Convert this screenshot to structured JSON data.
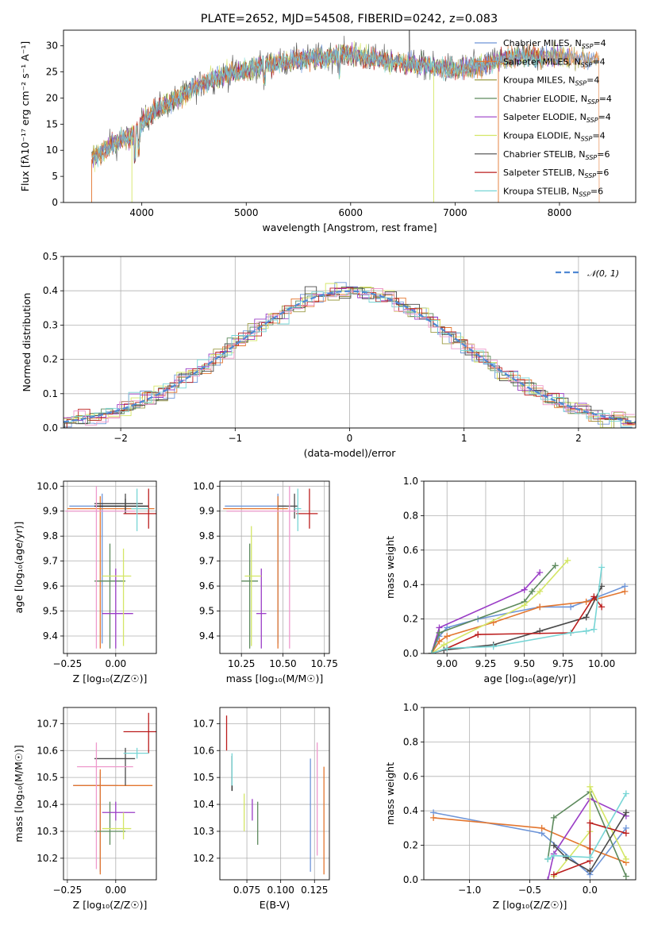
{
  "figure": {
    "title": "PLATE=2652, MJD=54508, FIBERID=0242, z=0.083"
  },
  "colors": [
    "#6e95d8",
    "#e3762f",
    "#9c9c46",
    "#5d8a5d",
    "#9a3dc6",
    "#d4e666",
    "#4a4a4a",
    "#bb1d1d",
    "#77d5d5",
    "#ee99cc",
    "#222222"
  ],
  "chart_data": [
    {
      "id": "spectrum",
      "type": "line",
      "xlabel": "wavelength [Angstrom, rest frame]",
      "ylabel": "Flux [fλ10⁻¹⁷ erg cm⁻² s⁻¹ A⁻¹]",
      "xlim": [
        3250,
        8730
      ],
      "ylim": [
        0,
        33
      ],
      "xticks": [
        "4000",
        "5000",
        "6000",
        "7000",
        "8000"
      ],
      "yticks": [
        "0",
        "5",
        "10",
        "15",
        "20",
        "25",
        "30"
      ],
      "legend_position": "top-right",
      "series": [
        {
          "name": "Chabrier MILES, N",
          "sub": "SSP",
          "suffix": "=4"
        },
        {
          "name": "Salpeter MILES, N",
          "sub": "SSP",
          "suffix": "=4"
        },
        {
          "name": "Kroupa MILES, N",
          "sub": "SSP",
          "suffix": "=4"
        },
        {
          "name": "Chabrier ELODIE, N",
          "sub": "SSP",
          "suffix": "=4"
        },
        {
          "name": "Salpeter ELODIE, N",
          "sub": "SSP",
          "suffix": "=4"
        },
        {
          "name": "Kroupa ELODIE, N",
          "sub": "SSP",
          "suffix": "=4"
        },
        {
          "name": "Chabrier STELIB, N",
          "sub": "SSP",
          "suffix": "=6"
        },
        {
          "name": "Salpeter STELIB, N",
          "sub": "SSP",
          "suffix": "=6"
        },
        {
          "name": "Kroupa STELIB, N",
          "sub": "SSP",
          "suffix": "=6"
        }
      ],
      "continuum": {
        "x": [
          3500,
          3600,
          3700,
          3800,
          3900,
          4000,
          4100,
          4200,
          4300,
          4400,
          4500,
          4600,
          4800,
          5000,
          5200,
          5400,
          5600,
          5800,
          6000,
          6200,
          6400,
          6600,
          6800,
          7000,
          7200,
          7400,
          7600,
          7800,
          8000,
          8200,
          8400
        ],
        "y": [
          8,
          9.5,
          11,
          12,
          12.5,
          15,
          17.5,
          18.5,
          19.5,
          20.5,
          22,
          23,
          24.5,
          25.5,
          26.5,
          27,
          27.5,
          28,
          28.5,
          27.5,
          27,
          26.5,
          26,
          25.5,
          26,
          27,
          28,
          28,
          28,
          27.5,
          27.5
        ]
      }
    },
    {
      "id": "residuals",
      "type": "histogram",
      "xlabel": "(data-model)/error",
      "ylabel": "Normed distribution",
      "xlim": [
        -2.5,
        2.5
      ],
      "ylim": [
        0,
        0.5
      ],
      "xticks": [
        "−2",
        "−1",
        "0",
        "1",
        "2"
      ],
      "yticks": [
        "0.0",
        "0.1",
        "0.2",
        "0.3",
        "0.4",
        "0.5"
      ],
      "legend_position": "top-right",
      "reference": {
        "name": "𝒩(0, 1)",
        "mu": 0,
        "sigma": 1
      },
      "bin_edges_start": -2.5,
      "bin_width": 0.1,
      "bins": 50
    },
    {
      "id": "age-vs-Z",
      "type": "errorbar",
      "xlabel": "Z [log₁₀(Z/Z☉)]",
      "ylabel": "age  [log₁₀(age/yr)]",
      "xlim": [
        -0.27,
        0.21
      ],
      "ylim": [
        9.33,
        10.02
      ],
      "xticks": [
        "−0.25",
        "0.00"
      ],
      "yticks": [
        "9.4",
        "9.5",
        "9.6",
        "9.7",
        "9.8",
        "9.9",
        "10.0"
      ],
      "points": [
        {
          "x": -0.07,
          "y": 9.92,
          "xerr": [
            0.17,
            0.1
          ],
          "yerr": [
            0.55,
            0.05
          ],
          "c": 0
        },
        {
          "x": -0.08,
          "y": 9.91,
          "xerr": [
            0.17,
            0.28
          ],
          "yerr": [
            0.56,
            0.05
          ],
          "c": 1
        },
        {
          "x": 0.05,
          "y": 9.92,
          "xerr": [
            0.16,
            0.12
          ],
          "yerr": [
            0.03,
            0.03
          ],
          "c": 10
        },
        {
          "x": -0.03,
          "y": 9.62,
          "xerr": [
            0.08,
            0.08
          ],
          "yerr": [
            0.27,
            0.15
          ],
          "c": 3
        },
        {
          "x": 0.0,
          "y": 9.49,
          "xerr": [
            0.07,
            0.09
          ],
          "yerr": [
            0.14,
            0.18
          ],
          "c": 4
        },
        {
          "x": 0.04,
          "y": 9.64,
          "xerr": [
            0.11,
            0.04
          ],
          "yerr": [
            0.28,
            0.11
          ],
          "c": 5
        },
        {
          "x": 0.05,
          "y": 9.93,
          "xerr": [
            0.16,
            0.09
          ],
          "yerr": [
            0.03,
            0.04
          ],
          "c": 6
        },
        {
          "x": 0.17,
          "y": 9.89,
          "xerr": [
            0.13,
            0.05
          ],
          "yerr": [
            0.06,
            0.1
          ],
          "c": 7
        },
        {
          "x": 0.11,
          "y": 9.91,
          "xerr": [
            0.03,
            0.06
          ],
          "yerr": [
            0.09,
            0.08
          ],
          "c": 8
        },
        {
          "x": -0.1,
          "y": 9.9,
          "xerr": [
            0.16,
            0.2
          ],
          "yerr": [
            0.55,
            0.1
          ],
          "c": 9
        }
      ]
    },
    {
      "id": "age-vs-mass",
      "type": "errorbar",
      "xlabel": "mass [log₁₀(M/M☉)]",
      "ylabel": "",
      "xlim": [
        10.12,
        10.78
      ],
      "ylim": [
        9.33,
        10.02
      ],
      "xticks": [
        "10.25",
        "10.50",
        "10.75"
      ],
      "yticks": [
        "9.4",
        "9.5",
        "9.6",
        "9.7",
        "9.8",
        "9.9",
        "10.0"
      ],
      "points": [
        {
          "x": 10.47,
          "y": 9.92,
          "xerr": [
            0.32,
            0.05
          ],
          "yerr": [
            0.55,
            0.05
          ],
          "c": 0
        },
        {
          "x": 10.47,
          "y": 9.91,
          "xerr": [
            0.33,
            0.06
          ],
          "yerr": [
            0.56,
            0.05
          ],
          "c": 1
        },
        {
          "x": 10.3,
          "y": 9.62,
          "xerr": [
            0.05,
            0.05
          ],
          "yerr": [
            0.27,
            0.15
          ],
          "c": 3
        },
        {
          "x": 10.37,
          "y": 9.49,
          "xerr": [
            0.03,
            0.03
          ],
          "yerr": [
            0.14,
            0.18
          ],
          "c": 4
        },
        {
          "x": 10.31,
          "y": 9.64,
          "xerr": [
            0.04,
            0.06
          ],
          "yerr": [
            0.28,
            0.2
          ],
          "c": 5
        },
        {
          "x": 10.57,
          "y": 9.92,
          "xerr": [
            0.1,
            0.02
          ],
          "yerr": [
            0.05,
            0.05
          ],
          "c": 6
        },
        {
          "x": 10.66,
          "y": 9.89,
          "xerr": [
            0.08,
            0.05
          ],
          "yerr": [
            0.06,
            0.1
          ],
          "c": 7
        },
        {
          "x": 10.59,
          "y": 9.91,
          "xerr": [
            0.02,
            0.02
          ],
          "yerr": [
            0.09,
            0.08
          ],
          "c": 8
        },
        {
          "x": 10.54,
          "y": 9.9,
          "xerr": [
            0.38,
            0.05
          ],
          "yerr": [
            0.55,
            0.1
          ],
          "c": 9
        }
      ]
    },
    {
      "id": "weight-vs-age",
      "type": "line",
      "xlabel": "age  [log₁₀(age/yr)]",
      "ylabel": "mass weight",
      "xlim": [
        8.85,
        10.22
      ],
      "ylim": [
        0,
        1.0
      ],
      "xticks": [
        "9.00",
        "9.25",
        "9.50",
        "9.75",
        "10.00"
      ],
      "yticks": [
        "0.0",
        "0.2",
        "0.4",
        "0.6",
        "0.8",
        "1.0"
      ],
      "series": [
        {
          "c": 0,
          "x": [
            8.9,
            8.95,
            9.0,
            9.2,
            9.6,
            9.8,
            9.95,
            10.15
          ],
          "y": [
            0.0,
            0.1,
            0.15,
            0.2,
            0.27,
            0.27,
            0.32,
            0.39
          ]
        },
        {
          "c": 1,
          "x": [
            8.9,
            8.95,
            9.0,
            9.3,
            9.6,
            9.9,
            10.15
          ],
          "y": [
            0.0,
            0.07,
            0.1,
            0.18,
            0.27,
            0.3,
            0.36
          ]
        },
        {
          "c": 4,
          "x": [
            8.9,
            8.95,
            9.5,
            9.6
          ],
          "y": [
            0.0,
            0.15,
            0.37,
            0.47
          ]
        },
        {
          "c": 3,
          "x": [
            8.9,
            8.95,
            9.5,
            9.55,
            9.7
          ],
          "y": [
            0.0,
            0.12,
            0.3,
            0.36,
            0.51
          ]
        },
        {
          "c": 5,
          "x": [
            8.9,
            8.98,
            9.5,
            9.6,
            9.78
          ],
          "y": [
            0.0,
            0.05,
            0.28,
            0.36,
            0.54
          ]
        },
        {
          "c": 6,
          "x": [
            8.9,
            8.98,
            9.3,
            9.6,
            9.9,
            10.0
          ],
          "y": [
            0.0,
            0.02,
            0.05,
            0.13,
            0.21,
            0.39
          ]
        },
        {
          "c": 7,
          "x": [
            8.9,
            9.0,
            9.2,
            9.8,
            9.95,
            10.0
          ],
          "y": [
            0.0,
            0.03,
            0.11,
            0.12,
            0.33,
            0.27
          ]
        },
        {
          "c": 8,
          "x": [
            8.9,
            9.0,
            9.3,
            9.8,
            9.9,
            9.95,
            10.0
          ],
          "y": [
            0.0,
            0.03,
            0.04,
            0.12,
            0.13,
            0.14,
            0.5
          ]
        }
      ]
    },
    {
      "id": "mass-vs-Z",
      "type": "errorbar",
      "xlabel": "Z [log₁₀(Z/Z☉)]",
      "ylabel": "mass [log₁₀(M/M☉)]",
      "xlim": [
        -0.27,
        0.21
      ],
      "ylim": [
        10.12,
        10.76
      ],
      "xticks": [
        "−0.25",
        "0.00"
      ],
      "yticks": [
        "10.2",
        "10.3",
        "10.4",
        "10.5",
        "10.6",
        "10.7"
      ],
      "points": [
        {
          "x": -0.08,
          "y": 10.47,
          "xerr": [
            0.14,
            0.09
          ],
          "yerr": [
            0.32,
            0.05
          ],
          "c": 0
        },
        {
          "x": -0.08,
          "y": 10.47,
          "xerr": [
            0.14,
            0.27
          ],
          "yerr": [
            0.33,
            0.06
          ],
          "c": 1
        },
        {
          "x": -0.03,
          "y": 10.3,
          "xerr": [
            0.08,
            0.08
          ],
          "yerr": [
            0.05,
            0.11
          ],
          "c": 3
        },
        {
          "x": 0.0,
          "y": 10.37,
          "xerr": [
            0.07,
            0.1
          ],
          "yerr": [
            0.03,
            0.04
          ],
          "c": 4
        },
        {
          "x": 0.04,
          "y": 10.31,
          "xerr": [
            0.11,
            0.04
          ],
          "yerr": [
            0.04,
            0.06
          ],
          "c": 5
        },
        {
          "x": 0.05,
          "y": 10.57,
          "xerr": [
            0.16,
            0.05
          ],
          "yerr": [
            0.1,
            0.04
          ],
          "c": 6
        },
        {
          "x": 0.17,
          "y": 10.67,
          "xerr": [
            0.13,
            0.05
          ],
          "yerr": [
            0.08,
            0.07
          ],
          "c": 7
        },
        {
          "x": 0.11,
          "y": 10.59,
          "xerr": [
            0.07,
            0.06
          ],
          "yerr": [
            0.02,
            0.02
          ],
          "c": 8
        },
        {
          "x": -0.1,
          "y": 10.54,
          "xerr": [
            0.1,
            0.19
          ],
          "yerr": [
            0.38,
            0.09
          ],
          "c": 9
        }
      ]
    },
    {
      "id": "mass-vs-ebv",
      "type": "errorbar",
      "xlabel": "E(B-V)",
      "ylabel": "",
      "xlim": [
        0.055,
        0.136
      ],
      "ylim": [
        10.12,
        10.76
      ],
      "xticks": [
        "0.075",
        "0.100",
        "0.125"
      ],
      "yticks": [
        "10.2",
        "10.3",
        "10.4",
        "10.5",
        "10.6",
        "10.7"
      ],
      "points": [
        {
          "x": 0.122,
          "y": 10.37,
          "yerr": [
            0.22,
            0.2
          ],
          "c": 0
        },
        {
          "x": 0.132,
          "y": 10.34,
          "yerr": [
            0.2,
            0.2
          ],
          "c": 1
        },
        {
          "x": 0.083,
          "y": 10.33,
          "yerr": [
            0.08,
            0.08
          ],
          "c": 3
        },
        {
          "x": 0.079,
          "y": 10.38,
          "yerr": [
            0.04,
            0.04
          ],
          "c": 4
        },
        {
          "x": 0.073,
          "y": 10.37,
          "yerr": [
            0.07,
            0.07
          ],
          "c": 5
        },
        {
          "x": 0.064,
          "y": 10.51,
          "yerr": [
            0.06,
            0.07
          ],
          "c": 10
        },
        {
          "x": 0.06,
          "y": 10.65,
          "yerr": [
            0.05,
            0.08
          ],
          "c": 7
        },
        {
          "x": 0.064,
          "y": 10.52,
          "yerr": [
            0.05,
            0.07
          ],
          "c": 8
        },
        {
          "x": 0.127,
          "y": 10.42,
          "yerr": [
            0.21,
            0.21
          ],
          "c": 9
        }
      ]
    },
    {
      "id": "weight-vs-Z",
      "type": "line",
      "xlabel": "Z [log₁₀(Z/Z☉)]",
      "ylabel": "mass weight",
      "xlim": [
        -1.38,
        0.38
      ],
      "ylim": [
        0,
        1.0
      ],
      "xticks": [
        "−1.0",
        "−0.5",
        "0.0"
      ],
      "yticks": [
        "0.0",
        "0.2",
        "0.4",
        "0.6",
        "0.8",
        "1.0"
      ],
      "series": [
        {
          "c": 0,
          "x": [
            -1.3,
            -0.4,
            0.0,
            0.3
          ],
          "y": [
            0.39,
            0.27,
            0.03,
            0.3
          ]
        },
        {
          "c": 1,
          "x": [
            -1.3,
            -0.4,
            0.0,
            0.3
          ],
          "y": [
            0.36,
            0.3,
            0.18,
            0.1
          ]
        },
        {
          "c": 3,
          "x": [
            -0.35,
            -0.3,
            0.0,
            0.3
          ],
          "y": [
            0.12,
            0.36,
            0.51,
            0.02
          ]
        },
        {
          "c": 4,
          "x": [
            -0.35,
            -0.3,
            0.0,
            0.3
          ],
          "y": [
            0.0,
            0.15,
            0.47,
            0.37
          ]
        },
        {
          "c": 5,
          "x": [
            -0.3,
            0.0,
            0.0,
            0.3
          ],
          "y": [
            0.02,
            0.28,
            0.54,
            0.12
          ]
        },
        {
          "c": 6,
          "x": [
            -0.3,
            -0.2,
            0.0,
            0.3
          ],
          "y": [
            0.2,
            0.13,
            0.05,
            0.39
          ]
        },
        {
          "c": 7,
          "x": [
            -0.3,
            0.0,
            0.0,
            0.3
          ],
          "y": [
            0.03,
            0.11,
            0.33,
            0.27
          ]
        },
        {
          "c": 8,
          "x": [
            -0.35,
            -0.3,
            0.0,
            0.3
          ],
          "y": [
            0.12,
            0.14,
            0.13,
            0.5
          ]
        }
      ]
    }
  ]
}
